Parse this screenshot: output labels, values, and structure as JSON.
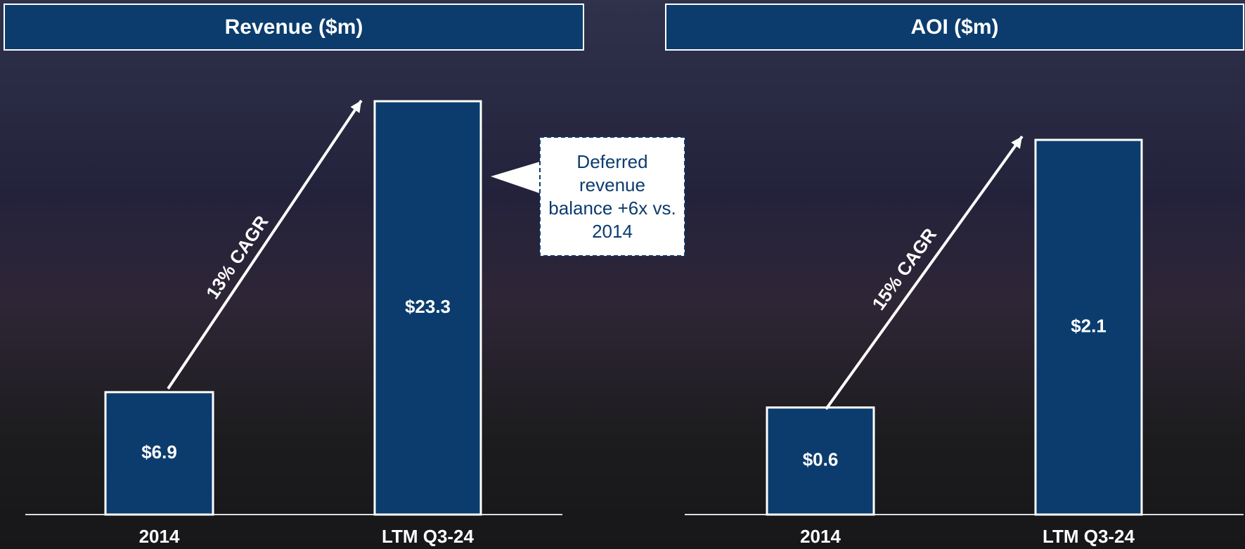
{
  "chart_data": [
    {
      "type": "bar",
      "title": "Revenue ($m)",
      "categories": [
        "2014",
        "LTM Q3-24"
      ],
      "values": [
        6.9,
        23.3
      ],
      "value_labels": [
        "$6.9",
        "$23.3"
      ],
      "color": "#0b3c6d",
      "annotation": "13% CAGR",
      "callout": "Deferred revenue balance +6x vs. 2014"
    },
    {
      "type": "bar",
      "title": "AOI ($m)",
      "categories": [
        "2014",
        "LTM Q3-24"
      ],
      "values": [
        0.6,
        2.1
      ],
      "value_labels": [
        "$0.6",
        "$2.1"
      ],
      "color": "#0b3c6d",
      "annotation": "15% CAGR"
    }
  ]
}
